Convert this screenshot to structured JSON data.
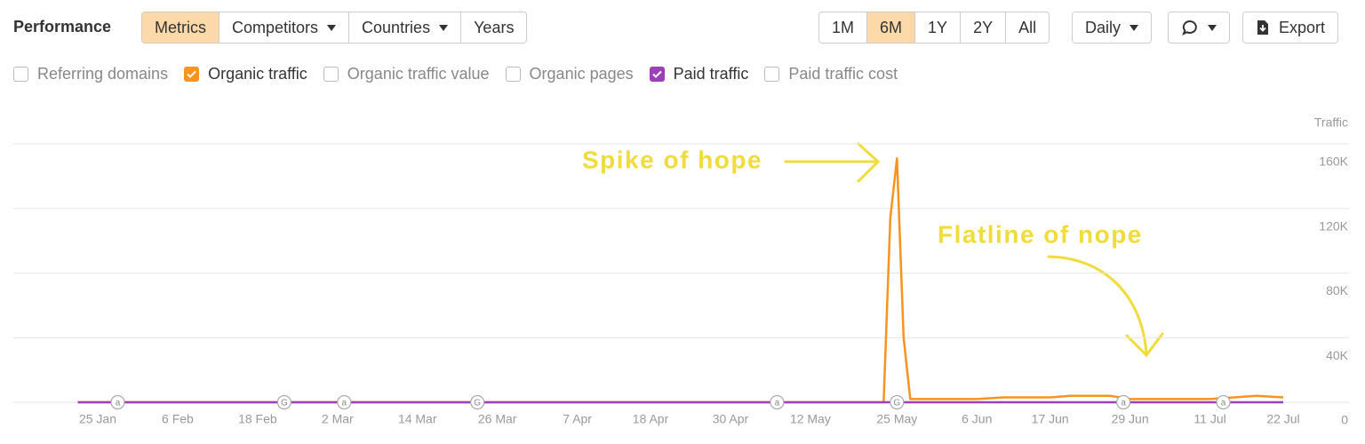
{
  "header": {
    "title": "Performance"
  },
  "toolbar": {
    "views": [
      {
        "label": "Metrics",
        "active": true
      },
      {
        "label": "Competitors",
        "dropdown": true
      },
      {
        "label": "Countries",
        "dropdown": true
      },
      {
        "label": "Years"
      }
    ],
    "ranges": [
      {
        "label": "1M"
      },
      {
        "label": "6M",
        "active": true
      },
      {
        "label": "1Y"
      },
      {
        "label": "2Y"
      },
      {
        "label": "All"
      }
    ],
    "interval": "Daily",
    "export": "Export"
  },
  "metrics": [
    {
      "label": "Referring domains",
      "checked": false
    },
    {
      "label": "Organic traffic",
      "checked": true,
      "color": "#f7931e"
    },
    {
      "label": "Organic traffic value",
      "checked": false
    },
    {
      "label": "Organic pages",
      "checked": false
    },
    {
      "label": "Paid traffic",
      "checked": true,
      "color": "#9c3fb8"
    },
    {
      "label": "Paid traffic cost",
      "checked": false
    }
  ],
  "chart_data": {
    "type": "line",
    "y_axis_label": "Traffic",
    "ylim": [
      0,
      160000
    ],
    "yticks": [
      0,
      {
        "value": 40000,
        "label": "40K"
      },
      {
        "value": 80000,
        "label": "80K"
      },
      {
        "value": 120000,
        "label": "120K"
      },
      {
        "value": 160000,
        "label": "160K"
      }
    ],
    "xticks": [
      "25 Jan",
      "6 Feb",
      "18 Feb",
      "2 Mar",
      "14 Mar",
      "26 Mar",
      "7 Apr",
      "18 Apr",
      "30 Apr",
      "12 May",
      "25 May",
      "6 Jun",
      "17 Jun",
      "29 Jun",
      "11 Jul",
      "22 Jul"
    ],
    "grid": true,
    "series": [
      {
        "name": "Organic traffic",
        "color": "#f7931e",
        "x": [
          "22 Jan",
          "23 May",
          "24 May",
          "25 May",
          "26 May",
          "27 May",
          "6 Jun",
          "10 Jun",
          "17 Jun",
          "20 Jun",
          "26 Jun",
          "29 Jun",
          "11 Jul",
          "18 Jul",
          "22 Jul"
        ],
        "values": [
          0,
          0,
          114000,
          151000,
          40000,
          2000,
          2000,
          3000,
          3000,
          4000,
          4000,
          2000,
          2000,
          4000,
          3000
        ]
      },
      {
        "name": "Paid traffic",
        "color": "#9c3fb8",
        "x": [
          "22 Jan",
          "22 Jul"
        ],
        "values": [
          0,
          0
        ]
      }
    ],
    "events": [
      {
        "x": "28 Jan",
        "label": "a"
      },
      {
        "x": "22 Feb",
        "label": "G"
      },
      {
        "x": "3 Mar",
        "label": "a"
      },
      {
        "x": "23 Mar",
        "label": "G"
      },
      {
        "x": "7 May",
        "label": "a"
      },
      {
        "x": "25 May",
        "label": "G"
      },
      {
        "x": "28 Jun",
        "label": "a"
      },
      {
        "x": "13 Jul",
        "label": "a"
      }
    ],
    "annotations": [
      {
        "text": "Spike of hope"
      },
      {
        "text": "Flatline of nope"
      }
    ]
  }
}
